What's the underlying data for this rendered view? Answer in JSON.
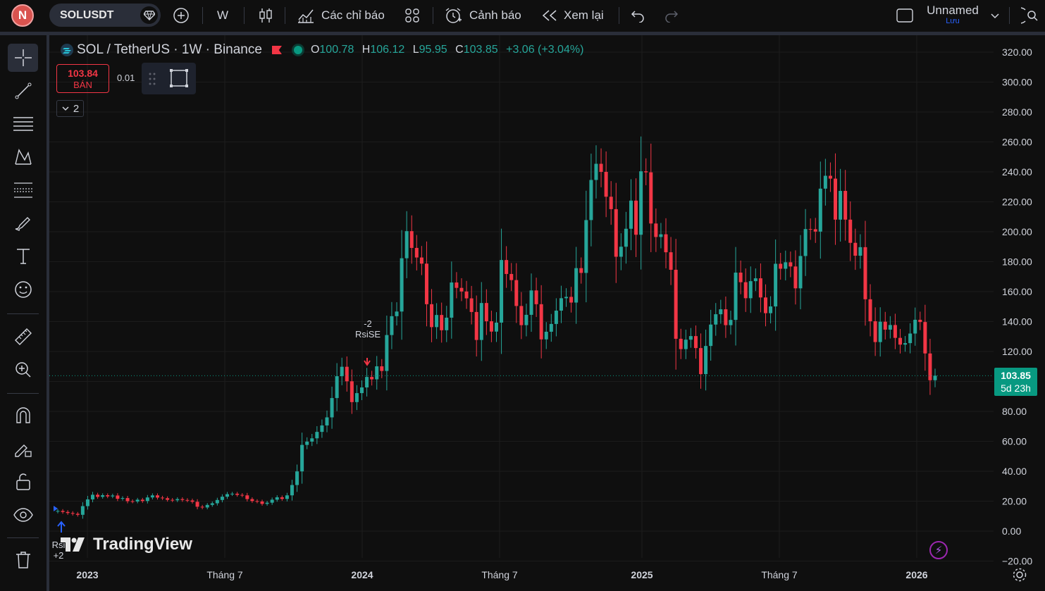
{
  "topbar": {
    "avatar_letter": "N",
    "symbol": "SOLUSDT",
    "interval": "W",
    "indicators_label": "Các chỉ báo",
    "alerts_label": "Cảnh báo",
    "replay_label": "Xem lại",
    "layout_name": "Unnamed",
    "save_label": "Lưu"
  },
  "legend": {
    "title": "SOL / TetherUS · 1W · Binance",
    "o_key": "O",
    "o_val": "100.78",
    "h_key": "H",
    "h_val": "106.12",
    "l_key": "L",
    "l_val": "95.95",
    "c_key": "C",
    "c_val": "103.85",
    "change": "+3.06 (+3.04%)"
  },
  "trade": {
    "sell_price": "103.84",
    "sell_label": "BÁN",
    "qty": "0.01",
    "collapse_count": "2"
  },
  "price_badge": {
    "price": "103.85",
    "countdown": "5d 23h"
  },
  "branding": "TradingView",
  "annotations": {
    "rsise_count": "-2",
    "rsise_label": "RsiSE",
    "rsile_label": "Rsi",
    "rsile_count": "+2"
  },
  "colors": {
    "up": "#26a69a",
    "down": "#f23645",
    "bg": "#0f0f0f",
    "grid": "#1c1c1c"
  },
  "chart_data": {
    "type": "candlestick",
    "title": "SOL / TetherUS · 1W · Binance",
    "y_ticks": [
      "320.00",
      "300.00",
      "280.00",
      "260.00",
      "240.00",
      "220.00",
      "200.00",
      "180.00",
      "160.00",
      "140.00",
      "120.00",
      "100.00",
      "80.00",
      "60.00",
      "40.00",
      "20.00",
      "0.00",
      "−20.00"
    ],
    "x_ticks": [
      "2023",
      "Tháng 7",
      "2024",
      "Tháng 7",
      "2025",
      "Tháng 7",
      "2026"
    ],
    "ylim": [
      -20,
      330
    ],
    "last_price": 103.85,
    "close_series": [
      13.5,
      12.8,
      12.1,
      11.6,
      10.9,
      16.7,
      21.2,
      24.3,
      22.9,
      24.0,
      23.2,
      23.8,
      21.6,
      22.1,
      20.0,
      19.8,
      21.0,
      20.1,
      22.5,
      23.9,
      22.4,
      22.0,
      20.9,
      20.6,
      21.4,
      20.8,
      20.5,
      19.6,
      16.3,
      15.8,
      17.5,
      18.6,
      20.8,
      23.0,
      24.7,
      25.0,
      24.2,
      23.9,
      21.4,
      20.1,
      19.8,
      18.2,
      19.0,
      21.0,
      22.6,
      21.5,
      23.9,
      30.8,
      39.9,
      57.6,
      59.8,
      62.0,
      66.3,
      70.6,
      76.0,
      88.9,
      103.5,
      109.8,
      100.1,
      86.2,
      92.2,
      96.0,
      103.0,
      101.4,
      110.1,
      107.0,
      131.0,
      143.6,
      146.7,
      182.3,
      200.4,
      189.2,
      182.8,
      178.7,
      151.6,
      136.3,
      144.4,
      134.2,
      142.6,
      166.1,
      162.5,
      160.1,
      155.5,
      146.4,
      127.7,
      152.4,
      140.2,
      133.3,
      139.3,
      181.1,
      171.8,
      167.7,
      150.4,
      137.6,
      144.5,
      160.8,
      151.6,
      128.1,
      133.2,
      138.4,
      147.3,
      155.6,
      156.5,
      152.7,
      175.7,
      172.5,
      207.8,
      234.6,
      245.4,
      240.0,
      223.4,
      215.1,
      183.3,
      190.0,
      202.0,
      220.8,
      198.0,
      240.4,
      239.7,
      205.5,
      196.5,
      198.3,
      186.3,
      174.6,
      128.5,
      121.6,
      127.9,
      130.3,
      122.3,
      104.9,
      123.7,
      138.0,
      144.9,
      148.2,
      137.6,
      141.1,
      172.7,
      166.3,
      155.6,
      167.0,
      168.9,
      156.1,
      145.6,
      150.1,
      178.6,
      175.3,
      179.6,
      176.8,
      162.2,
      183.8,
      201.8,
      201.7,
      200.1,
      228.8,
      237.4,
      235.5,
      208.1,
      227.3,
      208.1,
      192.6,
      184.0,
      189.7,
      154.9,
      140.2,
      126.3,
      139.9,
      134.6,
      137.7,
      129.1,
      124.6,
      125.6,
      132.0,
      141.2,
      139.7,
      118.7,
      100.8,
      103.85
    ]
  }
}
